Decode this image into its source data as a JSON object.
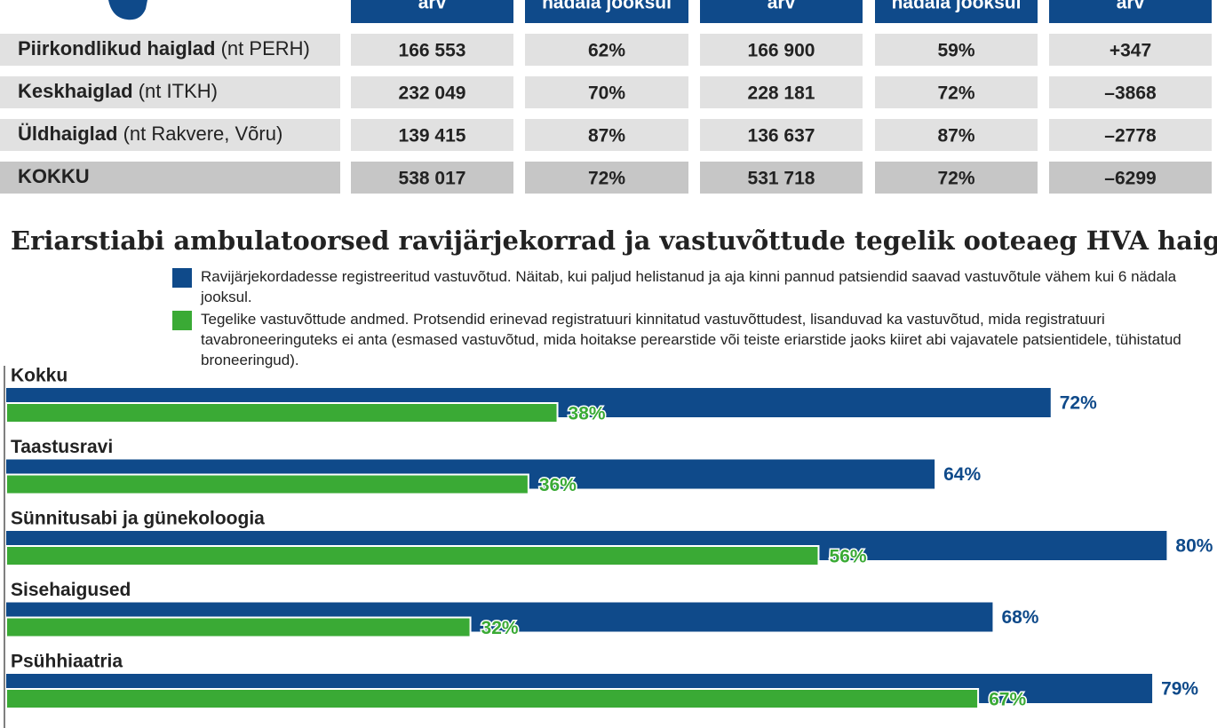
{
  "table": {
    "header": [
      "arv",
      "nädala jooksul",
      "arv",
      "nädala jooksul",
      "arv"
    ],
    "rows": [
      [
        {
          "name": "Piirkondlikud  haiglad",
          "note": "(nt PERH)"
        },
        "166 553",
        "62%",
        "166 900",
        "59%",
        "+347"
      ],
      [
        {
          "name": "Keskhaiglad",
          "note": "(nt ITKH)"
        },
        "232 049",
        "70%",
        "228 181",
        "72%",
        "–3868"
      ],
      [
        {
          "name": "Üldhaiglad",
          "note": "(nt  Rakvere, Võru)"
        },
        "139 415",
        "87%",
        "136 637",
        "87%",
        "–2778"
      ],
      [
        {
          "name": "KOKKU"
        },
        "538 017",
        "72%",
        "531 718",
        "72%",
        "–6299"
      ]
    ]
  },
  "chart_data": {
    "type": "bar",
    "orientation": "horizontal",
    "title": "Eriarstiabi   ambulatoorsed ravijärjekorrad ja vastuvõttude tegelik ooteaeg HVA haiglates",
    "categories": [
      "Kokku",
      "Taastusravi",
      "Sünnitusabi ja  günekoloogia",
      "Sisehaigused",
      "Psühhiaatria"
    ],
    "series": [
      {
        "name": "Ravijärjekordadesse registreeritud vastuvõtud. Näitab, kui paljud helistanud ja aja kinni pannud patsiendid saavad vastuvõtule vähem kui 6 nädala jooksul.",
        "color": "#0f4a8a",
        "values": [
          72,
          64,
          80,
          68,
          79
        ],
        "value_labels": [
          "72%",
          "64%",
          "80%",
          "68%",
          "79%"
        ]
      },
      {
        "name": "Tegelike vastuvõttude andmed. Protsendid erinevad registratuuri kinnitatud vastuvõttudest, lisanduvad ka vastuvõtud, mida registratuuri tavabroneeringuteks ei anta (esmased vastuvõtud, mida hoitakse perearstide või teiste eriarstide jaoks kiiret abi vajavatele patsientidele, tühistatud broneeringud).",
        "color": "#3aaa35",
        "values": [
          38,
          36,
          56,
          32,
          67
        ],
        "value_labels": [
          "38%",
          "36%",
          "56%",
          "32%",
          "67%"
        ]
      }
    ]
  }
}
